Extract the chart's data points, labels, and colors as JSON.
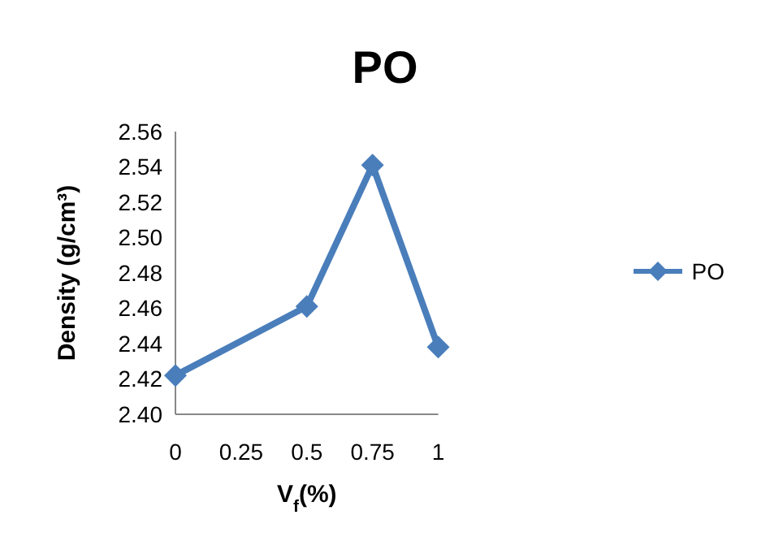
{
  "chart_data": {
    "type": "line",
    "title": "PO",
    "xlabel": "V$_{f}$(%)",
    "ylabel": "Density (g/cm³)",
    "x": [
      0,
      0.5,
      0.75,
      1
    ],
    "series": [
      {
        "name": "PO",
        "color": "#4a7ebb",
        "values": [
          2.422,
          2.461,
          2.541,
          2.438
        ]
      }
    ],
    "xlim": [
      0,
      1
    ],
    "xticks": [
      0,
      0.25,
      0.5,
      0.75,
      1
    ],
    "ylim": [
      2.4,
      2.56
    ],
    "yticks": [
      {
        "value": 2.4,
        "label": "2.40"
      },
      2.42,
      2.44,
      2.46,
      2.48,
      {
        "value": 2.5,
        "label": "2.50"
      },
      2.52,
      2.54,
      2.56
    ],
    "legend": "right",
    "marker": "diamond",
    "line_style": "solid",
    "grid": false
  }
}
